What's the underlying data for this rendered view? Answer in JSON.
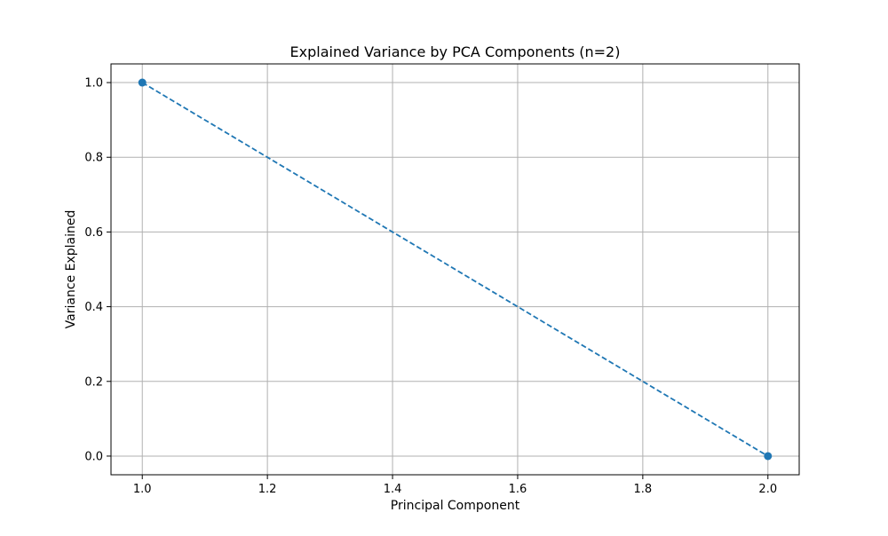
{
  "chart_data": {
    "type": "line",
    "title": "Explained Variance by PCA Components (n=2)",
    "xlabel": "Principal Component",
    "ylabel": "Variance Explained",
    "xlim": [
      0.95,
      2.05
    ],
    "ylim": [
      -0.05,
      1.05
    ],
    "xticks": [
      1.0,
      1.2,
      1.4,
      1.6,
      1.8,
      2.0
    ],
    "yticks": [
      0.0,
      0.2,
      0.4,
      0.6,
      0.8,
      1.0
    ],
    "xtick_labels": [
      "1.0",
      "1.2",
      "1.4",
      "1.6",
      "1.8",
      "2.0"
    ],
    "ytick_labels": [
      "0.0",
      "0.2",
      "0.4",
      "0.6",
      "0.8",
      "1.0"
    ],
    "grid": true,
    "series": [
      {
        "x": [
          1,
          2
        ],
        "values": [
          1.0,
          0.0
        ],
        "color": "#1f77b4",
        "line_style": "dashed",
        "marker": "circle"
      }
    ]
  }
}
